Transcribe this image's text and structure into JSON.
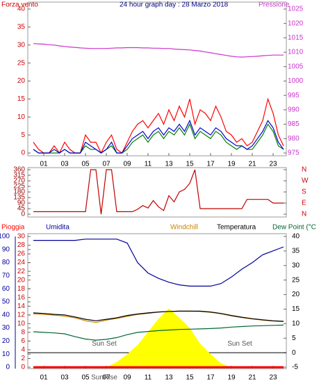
{
  "chart_data": [
    {
      "type": "line",
      "title": "24 hour graph day : 28 Marzo 2018",
      "ylabel": "Forza vento",
      "y2label": "Pressione",
      "x": [
        0,
        0.5,
        1,
        1.5,
        2,
        2.5,
        3,
        3.5,
        4,
        4.5,
        5,
        5.5,
        6,
        6.5,
        7,
        7.5,
        8,
        8.5,
        9,
        9.5,
        10,
        10.5,
        11,
        11.5,
        12,
        12.5,
        13,
        13.5,
        14,
        14.5,
        15,
        15.5,
        16,
        16.5,
        17,
        17.5,
        18,
        18.5,
        19,
        19.5,
        20,
        20.5,
        21,
        21.5,
        22,
        22.5,
        23,
        23.5,
        24
      ],
      "xlim": [
        0,
        24
      ],
      "xticks": [
        {
          "value": 1,
          "label": "01"
        },
        {
          "value": 3,
          "label": "03"
        },
        {
          "value": 5,
          "label": "05"
        },
        {
          "value": 7,
          "label": "07"
        },
        {
          "value": 9,
          "label": "09"
        },
        11,
        13,
        15,
        17,
        19,
        21,
        23
      ],
      "ylim": [
        0,
        40
      ],
      "yticks": [
        0,
        5,
        10,
        15,
        20,
        25,
        30,
        35,
        40
      ],
      "y2lim": [
        975,
        1025
      ],
      "y2ticks": [
        975,
        980,
        985,
        990,
        995,
        1000,
        1005,
        1010,
        1015,
        1020,
        1025
      ],
      "series": [
        {
          "color": "#ff0000",
          "values": [
            3,
            1,
            0,
            0,
            2,
            0,
            3,
            1,
            0,
            0,
            5,
            3,
            3,
            0,
            3,
            5,
            1,
            0,
            3,
            6,
            8,
            9,
            7,
            9,
            11,
            8,
            12,
            9,
            13,
            10,
            15,
            8,
            12,
            11,
            9,
            13,
            10,
            6,
            5,
            3,
            4,
            2,
            3,
            6,
            9,
            15,
            11,
            5,
            2
          ]
        },
        {
          "color": "#008000",
          "values": [
            1,
            0,
            0,
            0,
            0,
            0,
            1,
            0,
            0,
            0,
            2,
            1,
            1,
            0,
            1,
            2,
            0,
            0,
            1,
            3,
            4,
            5,
            3,
            5,
            6,
            4,
            6,
            5,
            7,
            5,
            8,
            4,
            6,
            5,
            4,
            6,
            5,
            3,
            2,
            1,
            2,
            1,
            1,
            3,
            5,
            8,
            6,
            2,
            1
          ]
        },
        {
          "color": "#0000cc",
          "values": [
            1,
            0,
            0,
            0,
            1,
            0,
            1,
            0,
            0,
            0,
            3,
            2,
            1,
            0,
            1,
            3,
            0,
            0,
            2,
            4,
            5,
            6,
            4,
            6,
            7,
            5,
            7,
            6,
            8,
            6,
            9,
            5,
            7,
            6,
            5,
            7,
            6,
            4,
            3,
            2,
            2,
            1,
            2,
            4,
            6,
            9,
            7,
            3,
            1
          ]
        },
        {
          "color": "#cc33cc",
          "axis": "y2",
          "values": [
            1013,
            1012.9,
            1012.8,
            1012.6,
            1012.5,
            1012.2,
            1012,
            1011.8,
            1011.7,
            1011.5,
            1011.4,
            1011.3,
            1011.3,
            1011.3,
            1011.3,
            1011.4,
            1011.5,
            1011.5,
            1011.6,
            1011.6,
            1011.6,
            1011.5,
            1011.5,
            1011.4,
            1011.4,
            1011.3,
            1011.3,
            1011.1,
            1011,
            1010.9,
            1010.8,
            1010.6,
            1010.4,
            1010.1,
            1009.8,
            1009.5,
            1009.2,
            1008.9,
            1008.6,
            1008.4,
            1008.3,
            1008.4,
            1008.5,
            1008.6,
            1008.8,
            1008.9,
            1009,
            1009,
            1009
          ]
        }
      ]
    },
    {
      "type": "line",
      "x": [
        0,
        0.5,
        1,
        1.5,
        2,
        2.5,
        3,
        3.5,
        4,
        4.5,
        5,
        5.5,
        6,
        6.5,
        7,
        7.5,
        8,
        8.5,
        9,
        9.5,
        10,
        10.5,
        11,
        11.5,
        12,
        12.5,
        13,
        13.5,
        14,
        14.5,
        15,
        15.5,
        16,
        16.5,
        17,
        17.5,
        18,
        18.5,
        19,
        19.5,
        20,
        20.5,
        21,
        21.5,
        22,
        22.5,
        23,
        23.5,
        24
      ],
      "xlim": [
        0,
        24
      ],
      "ylim": [
        0,
        360
      ],
      "yticks": [
        0,
        45,
        90,
        135,
        180,
        225,
        270,
        315,
        360
      ],
      "y2lim": [
        0,
        360
      ],
      "y2ticks": [
        {
          "value": 0,
          "label": "N"
        },
        {
          "value": 90,
          "label": "E"
        },
        {
          "value": 180,
          "label": "S"
        },
        {
          "value": 270,
          "label": "W"
        },
        {
          "value": 360,
          "label": "N"
        }
      ],
      "series": [
        {
          "color": "#c00000",
          "values": [
            20,
            20,
            20,
            20,
            20,
            20,
            20,
            20,
            20,
            20,
            20,
            360,
            360,
            0,
            360,
            360,
            20,
            20,
            20,
            20,
            40,
            70,
            50,
            110,
            60,
            30,
            150,
            100,
            180,
            200,
            250,
            360,
            45,
            45,
            45,
            45,
            45,
            45,
            45,
            45,
            45,
            120,
            120,
            120,
            120,
            120,
            90,
            90,
            90
          ]
        }
      ]
    },
    {
      "type": "line",
      "x": [
        0,
        1,
        2,
        3,
        4,
        5,
        6,
        7,
        8,
        9,
        10,
        11,
        12,
        13,
        14,
        15,
        16,
        17,
        18,
        19,
        20,
        21,
        22,
        23,
        24
      ],
      "xlim": [
        0,
        24
      ],
      "xticks": [
        {
          "value": 1,
          "label": "01"
        },
        {
          "value": 3,
          "label": "03"
        },
        {
          "value": 5,
          "label": "05"
        },
        {
          "value": 7,
          "label": "07"
        },
        {
          "value": 9,
          "label": "09"
        },
        11,
        13,
        15,
        17,
        19,
        21,
        23
      ],
      "ylim": [
        0,
        100
      ],
      "yticks": [
        0,
        10,
        20,
        30,
        40,
        50,
        60,
        70,
        80,
        90,
        100
      ],
      "y2lim": [
        -5,
        40
      ],
      "y2ticks": [
        -5,
        0,
        5,
        10,
        15,
        20,
        25,
        30,
        35,
        40
      ],
      "y3lim": [
        0,
        30
      ],
      "y3ticks": [
        0,
        2,
        4,
        6,
        8,
        10,
        12,
        14,
        16,
        18,
        20,
        22,
        24,
        26,
        28,
        30
      ],
      "zero_line": true,
      "series": [
        {
          "color": "#ffff00",
          "fill": true,
          "values": [
            0,
            0,
            0,
            0,
            0,
            0,
            0,
            0,
            4,
            10,
            17,
            27,
            37,
            45,
            38,
            30,
            18,
            10,
            3,
            0,
            0,
            0,
            0,
            0,
            0
          ]
        },
        {
          "name": "Pioggia",
          "color": "#ff0000",
          "axis": "y3",
          "values": [
            0,
            0,
            0,
            0,
            0,
            0,
            0,
            0,
            0,
            0,
            0,
            0,
            0,
            0,
            0,
            0,
            0,
            0,
            0,
            0,
            0,
            0,
            0,
            0,
            0
          ]
        },
        {
          "name": "Umidita",
          "color": "#000099",
          "values": [
            97,
            97,
            97,
            97,
            97,
            98,
            98,
            98,
            98,
            95,
            80,
            72,
            68,
            65,
            63,
            62,
            62,
            62,
            64,
            69,
            75,
            80,
            86,
            89,
            92
          ]
        },
        {
          "name": "Windchill",
          "color": "#cc8400",
          "axis": "y2",
          "values": [
            13.4,
            13.2,
            12.9,
            12.6,
            12,
            11,
            10.4,
            11.2,
            11.8,
            12.5,
            13.2,
            13.5,
            14,
            14.2,
            14.3,
            14.3,
            14.2,
            13.9,
            13.4,
            12.7,
            12.1,
            11.6,
            11.2,
            10.9,
            10.7
          ]
        },
        {
          "name": "Temperatura",
          "color": "#000000",
          "axis": "y2",
          "values": [
            13.7,
            13.5,
            13.2,
            13,
            12.3,
            11.5,
            11,
            11.5,
            12,
            12.8,
            13.3,
            13.7,
            14,
            14.2,
            14.3,
            14.3,
            14.3,
            14,
            13.5,
            12.8,
            12.2,
            11.7,
            11.3,
            11,
            10.8
          ]
        },
        {
          "name": "Dew Point (°C",
          "color": "#006633",
          "axis": "y2",
          "values": [
            7.2,
            7,
            6.8,
            6.5,
            5.5,
            4.7,
            4.3,
            4.6,
            5.2,
            6.2,
            7,
            7.3,
            7.6,
            7.8,
            8,
            8.1,
            8.2,
            8.3,
            8.5,
            8.8,
            9,
            9.2,
            9.3,
            9.4,
            9.5
          ]
        }
      ],
      "annotations": [
        {
          "text": "Sun Set",
          "x": 6.8,
          "y": 18
        },
        {
          "text": "SunRise",
          "x": 6.8,
          "y": -8
        },
        {
          "text": "Sun Set",
          "x": 19.8,
          "y": 18
        }
      ]
    }
  ]
}
